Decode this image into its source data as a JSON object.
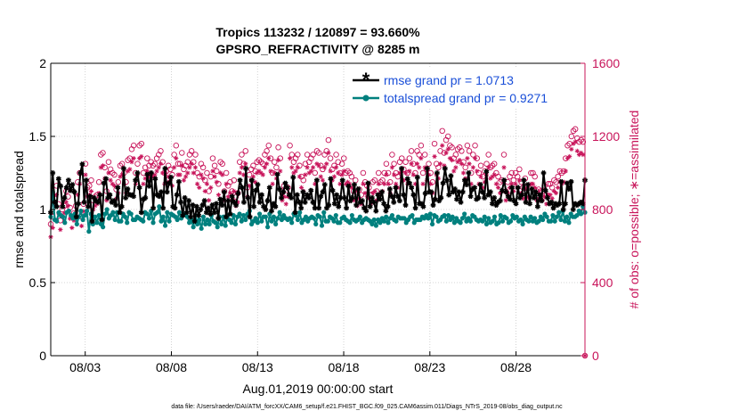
{
  "chart_data": {
    "type": "line",
    "title_line1": "Tropics 113232 / 120897 = 93.660%",
    "title_line2": "GPSRO_REFRACTIVITY @ 8285 m",
    "xlabel": "Aug.01,2019 00:00:00 start",
    "ylabel_left": "rmse and totalspread",
    "ylabel_right": "# of obs: o=possible; ∗=assimilated",
    "footnote": "data file: /Users/raeder/DAI/ATM_forcXX/CAM6_setup/f.e21.FHIST_BGC.f09_025.CAM6assim.011/Diags_NTrS_2019-08/obs_diag_output.nc",
    "xlim": [
      1.0,
      32.0
    ],
    "xticks": [
      3,
      8,
      13,
      18,
      23,
      28
    ],
    "xtick_labels": [
      "08/03",
      "08/08",
      "08/13",
      "08/18",
      "08/23",
      "08/28"
    ],
    "ylim_left": [
      0,
      2
    ],
    "yticks_left": [
      "0",
      "0.5",
      "1",
      "1.5",
      "2"
    ],
    "ylim_right": [
      0,
      1600
    ],
    "yticks_right": [
      "0",
      "400",
      "800",
      "1200",
      "1600"
    ],
    "legend": {
      "position": "top-right",
      "entries": [
        "rmse grand pr = 1.0713",
        "totalspread grand pr = 0.9271"
      ]
    },
    "colors": {
      "rmse": "#000000",
      "spread": "#00807e",
      "obs": "#c8145a",
      "legend_text": "#1a4fd8"
    },
    "series": [
      {
        "name": "rmse",
        "axis": "left",
        "values": [
          0.98,
          1.25,
          1.05,
          1.02,
          1.21,
          1.16,
          1.02,
          1.08,
          1.15,
          1.2,
          1.13,
          1.17,
          1.12,
          0.95,
          1.04,
          1.25,
          1.31,
          1.05,
          1.2,
          1.02,
          1.09,
          0.92,
          1.08,
          1.06,
          1.05,
          1.1,
          0.93,
          1.18,
          1.21,
          1.08,
          1.1,
          1.05,
          1.06,
          1.03,
          1.15,
          0.98,
          1.02,
          1.28,
          1.08,
          1.14,
          1.1,
          1.1,
          1.09,
          1.2,
          1.25,
          1.15,
          0.98,
          1.07,
          1.08,
          1.24,
          1.16,
          1.25,
          1.01,
          1.21,
          1.1,
          1.09,
          1.12,
          1.01,
          1.28,
          1.12,
          1.18,
          1.22,
          1.02,
          1.01,
          1.1,
          1.19,
          1.05,
          0.96,
          1.08,
          0.98,
          1.06,
          0.95,
          1.03,
          0.92,
          1.02,
          0.96,
          1.0,
          1.03,
          1.06,
          0.98,
          1.01,
          0.97,
          1.03,
          0.98,
          1.04,
          0.94,
          1.07,
          1.03,
          1.12,
          0.95,
          1.06,
          0.97,
          1.09,
          1.05,
          1.03,
          1.11,
          1.2,
          1.15,
          1.05,
          1.28,
          1.08,
          0.95,
          1.2,
          1.02,
          1.13,
          1.17,
          1.05,
          1.1,
          1.02,
          1.0,
          1.06,
          1.15,
          0.99,
          1.04,
          1.02,
          1.24,
          1.14,
          1.08,
          1.12,
          1.18,
          1.15,
          1.1,
          1.08,
          1.22,
          0.98,
          1.1,
          1.05,
          1.01,
          1.12,
          1.05,
          1.1,
          1.08,
          1.13,
          1.05,
          1.01,
          1.2,
          1.01,
          1.09,
          1.12,
          1.17,
          1.01,
          1.03,
          1.21,
          1.13,
          1.04,
          1.1,
          1.02,
          1.08,
          1.2,
          1.08,
          1.01,
          1.16,
          1.06,
          1.08,
          1.17,
          1.03,
          1.14,
          1.05,
          1.06,
          1.01,
          0.99,
          1.18,
          1.02,
          1.08,
          1.05,
          0.99,
          1.1,
          1.07,
          1.12,
          1.04,
          0.99,
          1.02,
          1.14,
          1.09,
          1.05,
          1.15,
          1.09,
          1.06,
          1.28,
          1.1,
          1.03,
          1.21,
          1.18,
          1.15,
          1.1,
          1.01,
          1.22,
          1.04,
          1.04,
          1.02,
          1.11,
          1.28,
          1.12,
          1.12,
          1.03,
          1.07,
          1.25,
          1.06,
          1.08,
          1.18,
          1.28,
          1.2,
          1.1,
          1.23,
          1.12,
          1.14,
          1.07,
          1.12,
          1.05,
          1.12,
          1.2,
          1.17,
          1.25,
          1.09,
          1.14,
          1.15,
          1.07,
          1.08,
          1.17,
          1.12,
          1.08,
          1.26,
          1.1,
          1.12,
          1.04,
          1.08,
          1.03,
          1.05,
          1.06,
          1.13,
          1.2,
          1.12,
          1.09,
          1.07,
          1.15,
          1.06,
          1.04,
          1.15,
          1.08,
          1.1,
          1.2,
          1.05,
          1.17,
          1.04,
          1.14,
          1.08,
          1.12,
          1.02,
          1.1,
          1.06,
          1.25,
          1.13,
          1.08,
          1.04,
          1.05,
          1.01,
          1.04,
          1.03,
          1.04,
          1.19,
          1.0,
          1.04,
          1.18,
          1.14,
          1.19,
          1.0,
          1.04,
          1.03,
          1.04,
          1.05,
          1.04,
          1.2
        ]
      },
      {
        "name": "totalspread",
        "axis": "left",
        "values": [
          0.95,
          1.12,
          0.93,
          0.92,
          0.98,
          0.96,
          0.95,
          0.91,
          0.98,
          0.99,
          0.96,
          0.94,
          0.97,
          0.9,
          0.95,
          0.99,
          0.93,
          0.96,
          0.99,
          0.85,
          0.97,
          0.9,
          0.95,
          0.91,
          0.96,
          0.9,
          0.88,
          0.97,
          1.0,
          0.94,
          0.96,
          0.98,
          0.93,
          0.98,
          0.92,
          0.92,
          0.97,
          0.95,
          0.91,
          0.98,
          0.97,
          0.93,
          0.93,
          0.95,
          0.94,
          0.93,
          0.92,
          0.98,
          0.97,
          0.94,
          0.99,
          0.91,
          0.97,
          0.98,
          1.02,
          0.92,
          0.95,
          0.89,
          0.98,
          0.92,
          0.97,
          0.96,
          0.95,
          0.93,
          0.98,
          0.94,
          0.96,
          0.97,
          0.95,
          0.91,
          0.93,
          0.88,
          0.96,
          0.9,
          0.93,
          0.87,
          0.95,
          0.9,
          0.93,
          0.9,
          0.96,
          0.92,
          0.91,
          0.88,
          0.95,
          0.9,
          0.95,
          0.89,
          0.96,
          0.93,
          0.91,
          0.96,
          0.9,
          0.95,
          0.97,
          0.92,
          0.96,
          0.93,
          0.97,
          0.99,
          0.9,
          0.92,
          0.94,
          0.91,
          0.97,
          0.92,
          0.95,
          0.95,
          0.88,
          0.97,
          0.92,
          0.95,
          0.9,
          0.94,
          0.98,
          0.93,
          0.96,
          0.94,
          0.93,
          0.94,
          0.91,
          0.97,
          0.96,
          0.93,
          0.98,
          0.91,
          0.93,
          0.95,
          0.92,
          0.94,
          0.95,
          0.94,
          0.9,
          0.96,
          0.95,
          0.89,
          0.98,
          0.92,
          0.92,
          0.95,
          0.94,
          0.92,
          0.96,
          0.91,
          0.91,
          0.94,
          0.95,
          0.93,
          0.92,
          0.91,
          0.96,
          0.93,
          0.92,
          0.93,
          0.95,
          0.91,
          0.93,
          0.94,
          0.93,
          0.92,
          0.9,
          0.93,
          0.89,
          0.93,
          0.91,
          0.94,
          0.92,
          0.95,
          0.91,
          0.94,
          0.96,
          0.93,
          0.92,
          0.95,
          0.94,
          0.94,
          0.94,
          0.91,
          0.93,
          0.95,
          0.96,
          0.91,
          0.93,
          0.93,
          0.93,
          0.95,
          0.94,
          0.96,
          0.94,
          0.97,
          0.9,
          0.96,
          0.95,
          0.92,
          0.93,
          0.95,
          0.96,
          0.92,
          0.96,
          0.93,
          0.95,
          0.91,
          0.94,
          0.92,
          0.91,
          0.94,
          0.97,
          0.92,
          0.94,
          0.92,
          0.96,
          0.95,
          0.93,
          0.92,
          0.93,
          0.92,
          0.95,
          0.9,
          0.94,
          0.91,
          0.92,
          0.95,
          0.9,
          0.91,
          0.96,
          0.92,
          0.95,
          0.94,
          0.91,
          0.92,
          0.96,
          0.94,
          0.95,
          0.92,
          0.93,
          0.9,
          0.95,
          0.93,
          0.92,
          0.95,
          0.92,
          0.94,
          0.91,
          0.92,
          0.95,
          0.93,
          0.97,
          0.95,
          0.92,
          0.92,
          0.96,
          0.92,
          0.95,
          0.98,
          0.93,
          0.99,
          0.92,
          0.95,
          0.91,
          0.97,
          0.95,
          0.95,
          0.96,
          0.99,
          0.97,
          1.02,
          0.98
        ]
      },
      {
        "name": "obs_possible",
        "axis": "right",
        "marker": "circle",
        "values": [
          720,
          760,
          860,
          930,
          830,
          740,
          800,
          820,
          900,
          870,
          810,
          760,
          780,
          820,
          950,
          1000,
          760,
          830,
          1050,
          920,
          930,
          960,
          850,
          870,
          880,
          950,
          1100,
          1110,
          1030,
          900,
          1060,
          1020,
          1000,
          990,
          910,
          950,
          1040,
          1050,
          1000,
          950,
          1070,
          1080,
          1130,
          1150,
          1000,
          1050,
          1150,
          1160,
          1000,
          1030,
          1080,
          1040,
          1060,
          1040,
          1050,
          1080,
          1100,
          1120,
          1060,
          1000,
          1010,
          1040,
          1020,
          990,
          1100,
          1150,
          1050,
          1050,
          1110,
          1020,
          1040,
          1060,
          1100,
          1120,
          1060,
          1100,
          1000,
          980,
          1050,
          1030,
          960,
          1000,
          900,
          980,
          1080,
          1040,
          1010,
          940,
          1060,
          1050,
          900,
          1000,
          930,
          950,
          900,
          960,
          870,
          890,
          1060,
          1100,
          1050,
          1120,
          920,
          990,
          1020,
          1040,
          1010,
          1060,
          1070,
          1060,
          1050,
          1100,
          1120,
          1150,
          1080,
          1000,
          1060,
          1030,
          1140,
          1080,
          900,
          930,
          880,
          920,
          1150,
          1100,
          1060,
          1080,
          1100,
          1040,
          980,
          960,
          1050,
          1100,
          1060,
          1080,
          1100,
          1000,
          1120,
          1110,
          1040,
          1020,
          1100,
          1120,
          1180,
          1080,
          1020,
          1040,
          1100,
          1060,
          1000,
          1050,
          1080,
          1000,
          1010,
          1000,
          980,
          900,
          960,
          870,
          910,
          880,
          1000,
          950,
          930,
          920,
          880,
          950,
          960,
          900,
          1000,
          950,
          960,
          1000,
          1050,
          1000,
          950,
          1100,
          1050,
          1000,
          980,
          1060,
          1080,
          1020,
          1060,
          1000,
          1080,
          1120,
          1050,
          1000,
          1120,
          1100,
          1150,
          1000,
          1100,
          1020,
          1050,
          1000,
          950,
          1160,
          1050,
          1030,
          1120,
          1230,
          1110,
          1180,
          1200,
          1150,
          1140,
          1080,
          1100,
          1130,
          1140,
          1120,
          1060,
          1030,
          1150,
          1120,
          1000,
          1100,
          1150,
          1080,
          1000,
          1040,
          980,
          1010,
          1050,
          1100,
          1030,
          1040,
          1050,
          1000,
          980,
          950,
          960,
          1100,
          900,
          950,
          980,
          1000,
          960,
          1000,
          980,
          1020,
          950,
          920,
          970,
          930,
          920,
          1000,
          1000,
          980,
          900,
          910,
          900,
          900,
          930,
          880,
          940,
          940,
          920,
          960,
          950,
          980,
          1010,
          1000,
          1010,
          1080,
          1150,
          1160,
          1200,
          1230,
          1240,
          1190,
          1170,
          1180,
          1170,
          0
        ]
      },
      {
        "name": "obs_assimilated",
        "axis": "right",
        "marker": "star",
        "values": [
          650,
          700,
          820,
          880,
          780,
          690,
          760,
          780,
          840,
          820,
          750,
          700,
          740,
          780,
          880,
          940,
          710,
          790,
          990,
          870,
          880,
          900,
          800,
          820,
          830,
          890,
          1030,
          1040,
          970,
          850,
          1000,
          960,
          940,
          930,
          860,
          890,
          980,
          990,
          940,
          890,
          1010,
          1020,
          1060,
          1080,
          940,
          990,
          1080,
          1090,
          940,
          970,
          1010,
          980,
          1000,
          980,
          990,
          1010,
          1030,
          1050,
          1000,
          940,
          950,
          980,
          960,
          930,
          1030,
          1080,
          990,
          990,
          1040,
          960,
          980,
          1000,
          1030,
          1050,
          1000,
          1030,
          940,
          920,
          990,
          970,
          900,
          940,
          850,
          920,
          1010,
          980,
          950,
          880,
          1000,
          990,
          850,
          940,
          870,
          890,
          850,
          900,
          820,
          840,
          1000,
          1030,
          990,
          1050,
          870,
          930,
          960,
          980,
          950,
          1000,
          1010,
          1000,
          990,
          1030,
          1050,
          1080,
          1010,
          940,
          1000,
          970,
          1070,
          1010,
          850,
          870,
          830,
          870,
          1080,
          1030,
          1000,
          1010,
          1030,
          980,
          920,
          900,
          990,
          1030,
          1000,
          1010,
          1030,
          940,
          1050,
          1040,
          980,
          960,
          1030,
          1050,
          1110,
          1010,
          960,
          980,
          1030,
          1000,
          940,
          990,
          1010,
          940,
          950,
          940,
          920,
          850,
          900,
          820,
          860,
          830,
          940,
          890,
          870,
          860,
          830,
          890,
          900,
          850,
          940,
          890,
          900,
          940,
          990,
          940,
          890,
          1030,
          990,
          940,
          920,
          1000,
          1010,
          960,
          1000,
          940,
          1010,
          1050,
          990,
          940,
          1050,
          1030,
          1080,
          940,
          1030,
          960,
          990,
          940,
          890,
          1090,
          990,
          970,
          1050,
          1150,
          1040,
          1110,
          1130,
          1080,
          1070,
          1010,
          1030,
          1060,
          1070,
          1050,
          1000,
          970,
          1080,
          1050,
          940,
          1030,
          1080,
          1010,
          940,
          980,
          920,
          950,
          990,
          1030,
          970,
          980,
          990,
          940,
          920,
          890,
          900,
          1030,
          850,
          890,
          920,
          940,
          900,
          940,
          920,
          960,
          890,
          860,
          910,
          870,
          860,
          940,
          940,
          920,
          850,
          860,
          850,
          850,
          870,
          830,
          880,
          880,
          860,
          900,
          890,
          920,
          950,
          940,
          950,
          1010,
          1080,
          1090,
          1130,
          1160,
          1170,
          1120,
          1100,
          1110,
          1100,
          0
        ]
      }
    ]
  }
}
